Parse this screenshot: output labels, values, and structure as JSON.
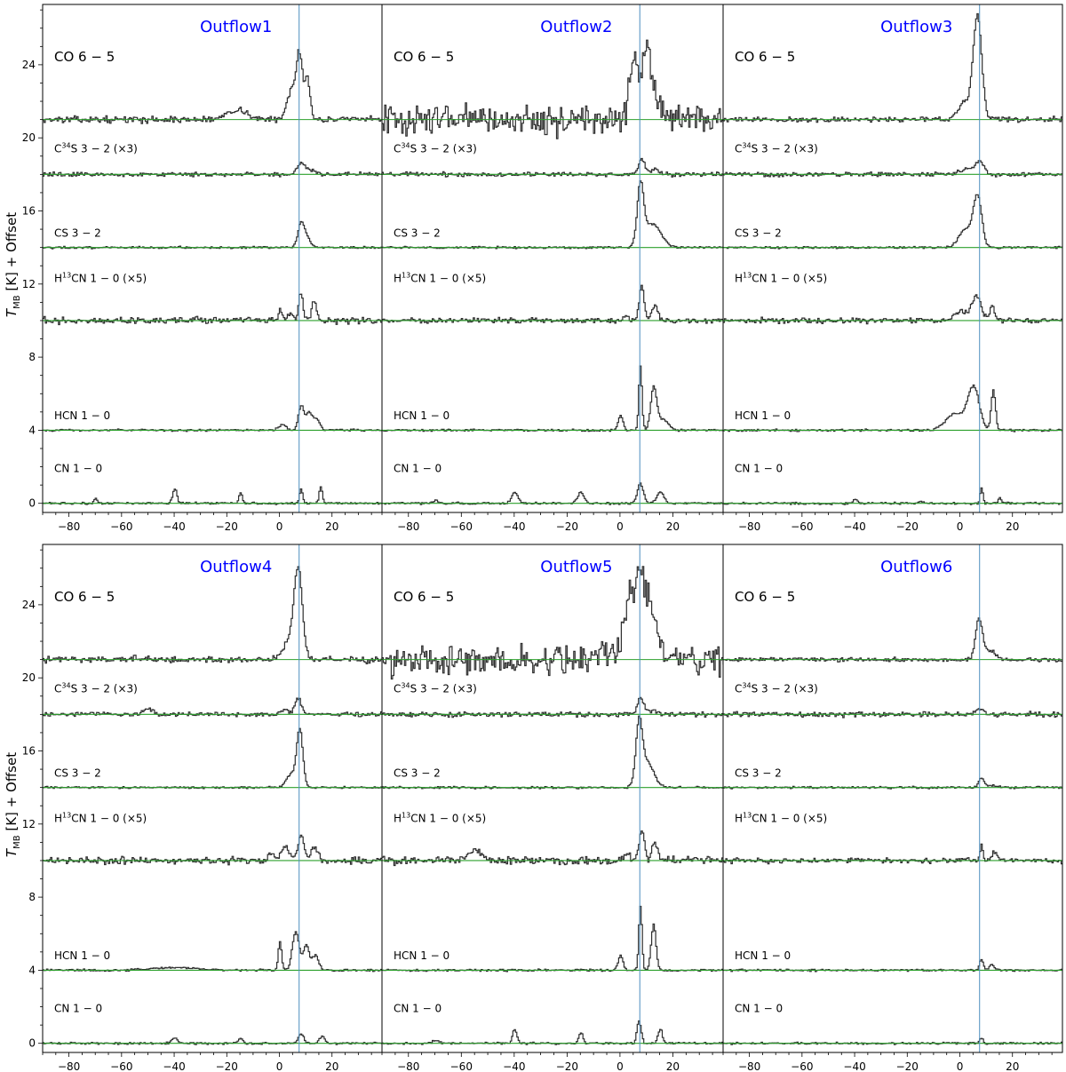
{
  "figure": {
    "ylabel_main": "T",
    "ylabel_sub": "MB",
    "ylabel_rest": " [K] + Offset"
  },
  "chart_data": {
    "type": "line",
    "x_range": [
      -90,
      39
    ],
    "y_range": [
      -0.5,
      27.3
    ],
    "x_ticks": [
      -80,
      -60,
      -40,
      -20,
      0,
      20
    ],
    "x_tick_labels": [
      "−80",
      "−60",
      "−40",
      "−20",
      "0",
      "20"
    ],
    "y_ticks": [
      0,
      4,
      8,
      12,
      16,
      20,
      24
    ],
    "y_tick_labels": [
      "0",
      "4",
      "8",
      "12",
      "16",
      "20",
      "24"
    ],
    "grid": false,
    "vline_x": 7.5,
    "vline_color": "#4c8ebf",
    "baseline_color": "#2ca02c",
    "spectrum_color": "#000000",
    "title_color": "#0000ff",
    "lines": [
      {
        "offset": 21,
        "label_pre": "CO  6 − 5",
        "label_sup": "",
        "label_post": "",
        "label_y": 24.2,
        "big": true
      },
      {
        "offset": 18,
        "label_pre": "C",
        "label_sup": "34",
        "label_post": "S  3 − 2 (×3)",
        "label_y": 19.2,
        "big": false
      },
      {
        "offset": 14,
        "label_pre": "CS  3 − 2",
        "label_sup": "",
        "label_post": "",
        "label_y": 14.6,
        "big": false
      },
      {
        "offset": 10,
        "label_pre": "H",
        "label_sup": "13",
        "label_post": "CN  1 − 0 (×5)",
        "label_y": 12.1,
        "big": false
      },
      {
        "offset": 4,
        "label_pre": "HCN  1 − 0",
        "label_sup": "",
        "label_post": "",
        "label_y": 4.6,
        "big": false
      },
      {
        "offset": 0,
        "label_pre": "CN  1 − 0",
        "label_sup": "",
        "label_post": "",
        "label_y": 1.7,
        "big": false
      }
    ],
    "panels": [
      {
        "title": "Outflow1",
        "noise": [
          0.12,
          0.08,
          0.04,
          0.12,
          0.04,
          0.04
        ],
        "features": [
          [
            [
              -15,
              0.5,
              3
            ],
            [
              -20,
              0.3,
              2
            ],
            [
              4.5,
              1.6,
              1.8
            ],
            [
              7.5,
              3.4,
              1.2
            ],
            [
              10.5,
              2.3,
              0.9
            ]
          ],
          [
            [
              8,
              0.6,
              1.5
            ],
            [
              12,
              0.2,
              2
            ]
          ],
          [
            [
              8,
              1.2,
              1.2
            ],
            [
              10,
              0.5,
              1.5
            ]
          ],
          [
            [
              0,
              0.6,
              0.6
            ],
            [
              8,
              1.6,
              0.8
            ],
            [
              13,
              1.1,
              0.9
            ],
            [
              4,
              0.4,
              1
            ]
          ],
          [
            [
              8,
              1.3,
              1
            ],
            [
              11,
              1.0,
              1.2
            ],
            [
              14,
              0.6,
              1.2
            ],
            [
              1,
              0.3,
              1.5
            ]
          ],
          [
            [
              -70,
              0.3,
              0.6
            ],
            [
              -40,
              0.8,
              0.8
            ],
            [
              -15,
              0.6,
              0.6
            ],
            [
              8,
              0.8,
              0.6
            ],
            [
              15.5,
              0.9,
              0.6
            ]
          ]
        ]
      },
      {
        "title": "Outflow2",
        "noise": [
          0.55,
          0.08,
          0.04,
          0.1,
          0.04,
          0.04
        ],
        "features": [
          [
            [
              5,
              3.2,
              1.6
            ],
            [
              10,
              4.0,
              1.7
            ],
            [
              14,
              1.0,
              1.5
            ]
          ],
          [
            [
              8,
              0.8,
              1.2
            ],
            [
              13,
              0.25,
              2
            ]
          ],
          [
            [
              7.5,
              3.2,
              1.2
            ],
            [
              12,
              1.3,
              3.2
            ]
          ],
          [
            [
              8,
              1.9,
              0.9
            ],
            [
              13,
              0.8,
              1.2
            ],
            [
              2,
              0.3,
              1
            ]
          ],
          [
            [
              0,
              0.8,
              0.9
            ],
            [
              7.5,
              3.5,
              0.6
            ],
            [
              12.5,
              2.3,
              1.1
            ],
            [
              16,
              0.6,
              2
            ]
          ],
          [
            [
              -40,
              0.6,
              1.2
            ],
            [
              -15,
              0.6,
              1.2
            ],
            [
              7.5,
              1.1,
              1.1
            ],
            [
              15,
              0.6,
              1.4
            ],
            [
              -70,
              0.15,
              1
            ]
          ]
        ]
      },
      {
        "title": "Outflow3",
        "noise": [
          0.1,
          0.08,
          0.04,
          0.1,
          0.04,
          0.04
        ],
        "features": [
          [
            [
              6.5,
              5.5,
              1.6
            ],
            [
              2,
              1.0,
              2.6
            ]
          ],
          [
            [
              7.5,
              0.7,
              1.5
            ],
            [
              3,
              0.3,
              2.5
            ]
          ],
          [
            [
              6.5,
              2.7,
              1.6
            ],
            [
              2,
              1.0,
              2.5
            ]
          ],
          [
            [
              6,
              1.3,
              1.8
            ],
            [
              0,
              0.5,
              2.5
            ],
            [
              12,
              0.8,
              0.8
            ]
          ],
          [
            [
              -2,
              0.9,
              3.5
            ],
            [
              5,
              2.3,
              2.2
            ],
            [
              12.5,
              2.2,
              0.8
            ]
          ],
          [
            [
              8,
              0.9,
              0.5
            ],
            [
              -40,
              0.2,
              0.8
            ],
            [
              -15,
              0.15,
              0.8
            ],
            [
              15,
              0.3,
              0.6
            ]
          ]
        ]
      },
      {
        "title": "Outflow4",
        "noise": [
          0.12,
          0.08,
          0.04,
          0.14,
          0.04,
          0.04
        ],
        "features": [
          [
            [
              7,
              4.6,
              1.5
            ],
            [
              4,
              1.2,
              2.3
            ]
          ],
          [
            [
              7,
              0.9,
              1.2
            ],
            [
              2,
              0.3,
              1.5
            ],
            [
              -50,
              0.25,
              2
            ]
          ],
          [
            [
              7.5,
              3.2,
              1.2
            ],
            [
              4,
              0.7,
              1.6
            ]
          ],
          [
            [
              8,
              1.3,
              1.2
            ],
            [
              2,
              0.8,
              1.4
            ],
            [
              13,
              0.8,
              1.3
            ],
            [
              -3,
              0.4,
              1
            ]
          ],
          [
            [
              0,
              1.6,
              0.6
            ],
            [
              6,
              2.1,
              1.3
            ],
            [
              10,
              1.4,
              1.1
            ],
            [
              13.5,
              0.8,
              1.2
            ],
            [
              -40,
              0.15,
              8
            ]
          ],
          [
            [
              -40,
              0.3,
              1
            ],
            [
              -15,
              0.25,
              1
            ],
            [
              8,
              0.5,
              1
            ],
            [
              16,
              0.4,
              1
            ]
          ]
        ]
      },
      {
        "title": "Outflow5",
        "noise": [
          0.6,
          0.1,
          0.04,
          0.15,
          0.04,
          0.04
        ],
        "features": [
          [
            [
              4,
              3.4,
              2.5
            ],
            [
              7,
              2.4,
              1.2
            ],
            [
              10,
              3.6,
              1.8
            ],
            [
              14,
              1.2,
              2
            ],
            [
              -5,
              0.5,
              3
            ]
          ],
          [
            [
              7.5,
              0.9,
              1.2
            ],
            [
              12,
              0.2,
              2
            ]
          ],
          [
            [
              7,
              3.2,
              1.2
            ],
            [
              10,
              1.4,
              2.5
            ]
          ],
          [
            [
              8,
              1.7,
              0.9
            ],
            [
              13,
              1.0,
              1
            ],
            [
              -55,
              0.5,
              3
            ],
            [
              2,
              0.4,
              1
            ]
          ],
          [
            [
              0,
              0.8,
              0.9
            ],
            [
              7.5,
              3.5,
              0.6
            ],
            [
              12.5,
              2.5,
              0.9
            ]
          ],
          [
            [
              -40,
              0.8,
              0.8
            ],
            [
              -15,
              0.6,
              0.8
            ],
            [
              7,
              1.2,
              0.8
            ],
            [
              15,
              0.8,
              0.8
            ],
            [
              -70,
              0.15,
              1
            ]
          ]
        ]
      },
      {
        "title": "Outflow6",
        "noise": [
          0.08,
          0.1,
          0.04,
          0.1,
          0.04,
          0.04
        ],
        "features": [
          [
            [
              7,
              2.2,
              1.3
            ],
            [
              11,
              0.5,
              2
            ]
          ],
          [
            [
              7.5,
              0.3,
              1.2
            ]
          ],
          [
            [
              8,
              0.5,
              1
            ],
            [
              12,
              0.1,
              2
            ]
          ],
          [
            [
              8,
              0.8,
              0.6
            ],
            [
              13,
              0.4,
              1
            ]
          ],
          [
            [
              8,
              0.6,
              0.7
            ],
            [
              12,
              0.3,
              1
            ]
          ],
          [
            [
              8,
              0.3,
              0.6
            ]
          ]
        ]
      }
    ]
  }
}
